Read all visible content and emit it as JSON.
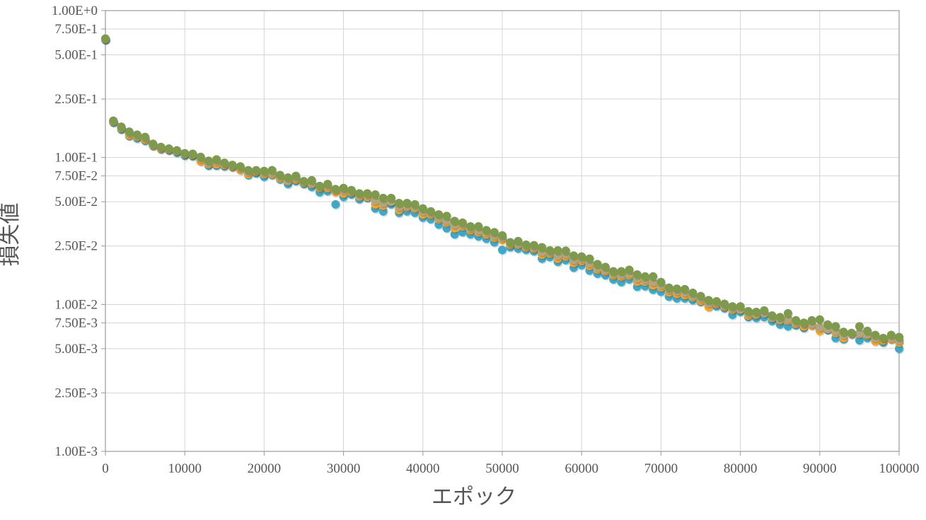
{
  "chart_data": {
    "type": "scatter",
    "title": "",
    "xlabel": "エポック",
    "ylabel": "損失値",
    "xlim": [
      0,
      100000
    ],
    "ylim": [
      0.001,
      1.0
    ],
    "y_scale": "log",
    "grid": true,
    "x_ticks": [
      0,
      10000,
      20000,
      30000,
      40000,
      50000,
      60000,
      70000,
      80000,
      90000,
      100000
    ],
    "x_tick_labels": [
      "0",
      "10000",
      "20000",
      "30000",
      "40000",
      "50000",
      "60000",
      "70000",
      "80000",
      "90000",
      "100000"
    ],
    "y_ticks": [
      0.001,
      0.0025,
      0.005,
      0.0075,
      0.01,
      0.025,
      0.05,
      0.075,
      0.1,
      0.25,
      0.5,
      0.75,
      1.0
    ],
    "y_tick_labels": [
      "1.00E-3",
      "2.50E-3",
      "5.00E-3",
      "7.50E-3",
      "1.00E-2",
      "2.50E-2",
      "5.00E-2",
      "7.50E-2",
      "1.00E-1",
      "2.50E-1",
      "5.00E-1",
      "7.50E-1",
      "1.00E+0"
    ],
    "x": [
      0,
      1000,
      2000,
      3000,
      4000,
      5000,
      6000,
      7000,
      8000,
      9000,
      10000,
      11000,
      12000,
      13000,
      14000,
      15000,
      16000,
      17000,
      18000,
      19000,
      20000,
      21000,
      22000,
      23000,
      24000,
      25000,
      26000,
      27000,
      28000,
      29000,
      30000,
      31000,
      32000,
      33000,
      34000,
      35000,
      36000,
      37000,
      38000,
      39000,
      40000,
      41000,
      42000,
      43000,
      44000,
      45000,
      46000,
      47000,
      48000,
      49000,
      50000,
      51000,
      52000,
      53000,
      54000,
      55000,
      56000,
      57000,
      58000,
      59000,
      60000,
      61000,
      62000,
      63000,
      64000,
      65000,
      66000,
      67000,
      68000,
      69000,
      70000,
      71000,
      72000,
      73000,
      74000,
      75000,
      76000,
      77000,
      78000,
      79000,
      80000,
      81000,
      82000,
      83000,
      84000,
      85000,
      86000,
      87000,
      88000,
      89000,
      90000,
      91000,
      92000,
      93000,
      94000,
      95000,
      96000,
      97000,
      98000,
      99000,
      100000
    ],
    "series": [
      {
        "color": "#41a7c6",
        "values": [
          0.63,
          0.173,
          0.155,
          0.14,
          0.135,
          0.13,
          0.12,
          0.114,
          0.112,
          0.108,
          0.103,
          0.102,
          0.095,
          0.088,
          0.088,
          0.087,
          0.086,
          0.083,
          0.076,
          0.078,
          0.074,
          0.076,
          0.071,
          0.066,
          0.069,
          0.066,
          0.063,
          0.058,
          0.059,
          0.048,
          0.054,
          0.056,
          0.052,
          0.053,
          0.045,
          0.043,
          0.048,
          0.042,
          0.043,
          0.042,
          0.039,
          0.038,
          0.035,
          0.033,
          0.03,
          0.031,
          0.03,
          0.029,
          0.028,
          0.0265,
          0.0235,
          0.0245,
          0.024,
          0.0235,
          0.023,
          0.0205,
          0.021,
          0.0195,
          0.02,
          0.0178,
          0.0185,
          0.017,
          0.0162,
          0.0158,
          0.0148,
          0.0142,
          0.0148,
          0.0132,
          0.0133,
          0.0126,
          0.0122,
          0.0113,
          0.011,
          0.011,
          0.0107,
          0.0104,
          0.0097,
          0.0097,
          0.0094,
          0.0085,
          0.0089,
          0.0082,
          0.0081,
          0.0082,
          0.0077,
          0.0073,
          0.0071,
          0.0072,
          0.0069,
          0.0072,
          0.0068,
          0.0067,
          0.0059,
          0.0058,
          0.0063,
          0.0057,
          0.0059,
          0.0057,
          0.0055,
          0.0058,
          0.005
        ]
      },
      {
        "color": "#f0a431",
        "values": [
          0.64,
          0.175,
          0.158,
          0.142,
          0.138,
          0.132,
          0.121,
          0.115,
          0.113,
          0.11,
          0.105,
          0.104,
          0.094,
          0.09,
          0.09,
          0.089,
          0.087,
          0.082,
          0.077,
          0.08,
          0.077,
          0.077,
          0.072,
          0.069,
          0.071,
          0.067,
          0.066,
          0.062,
          0.062,
          0.058,
          0.057,
          0.058,
          0.054,
          0.054,
          0.048,
          0.047,
          0.05,
          0.044,
          0.046,
          0.045,
          0.041,
          0.041,
          0.038,
          0.036,
          0.033,
          0.034,
          0.032,
          0.031,
          0.03,
          0.0285,
          0.0275,
          0.0255,
          0.0255,
          0.0245,
          0.024,
          0.0218,
          0.0222,
          0.0205,
          0.0212,
          0.0192,
          0.0198,
          0.0183,
          0.0173,
          0.0168,
          0.0158,
          0.0155,
          0.0158,
          0.0143,
          0.0143,
          0.0135,
          0.0131,
          0.0121,
          0.0118,
          0.0116,
          0.0112,
          0.0106,
          0.0096,
          0.0101,
          0.0097,
          0.0092,
          0.0092,
          0.0084,
          0.0085,
          0.0088,
          0.0081,
          0.0078,
          0.0078,
          0.0074,
          0.0071,
          0.0072,
          0.0066,
          0.0068,
          0.0064,
          0.0059,
          0.0063,
          0.0063,
          0.0062,
          0.0056,
          0.0057,
          0.0058,
          0.0055
        ]
      },
      {
        "color": "#b3a57e",
        "values": [
          0.64,
          0.176,
          0.159,
          0.147,
          0.14,
          0.135,
          0.122,
          0.117,
          0.114,
          0.111,
          0.106,
          0.105,
          0.098,
          0.092,
          0.094,
          0.091,
          0.088,
          0.085,
          0.08,
          0.081,
          0.079,
          0.079,
          0.074,
          0.07,
          0.073,
          0.068,
          0.067,
          0.063,
          0.064,
          0.06,
          0.06,
          0.059,
          0.055,
          0.056,
          0.051,
          0.049,
          0.05,
          0.046,
          0.047,
          0.046,
          0.043,
          0.042,
          0.039,
          0.037,
          0.035,
          0.035,
          0.033,
          0.032,
          0.031,
          0.0295,
          0.0285,
          0.026,
          0.026,
          0.025,
          0.0245,
          0.0228,
          0.0228,
          0.0215,
          0.022,
          0.02,
          0.0205,
          0.019,
          0.0178,
          0.0172,
          0.0162,
          0.016,
          0.0162,
          0.015,
          0.0148,
          0.0142,
          0.0136,
          0.0126,
          0.0123,
          0.0121,
          0.0115,
          0.011,
          0.0102,
          0.0103,
          0.0099,
          0.0094,
          0.0093,
          0.0087,
          0.0086,
          0.0087,
          0.0081,
          0.0079,
          0.008,
          0.0076,
          0.0074,
          0.0074,
          0.007,
          0.0068,
          0.0066,
          0.0062,
          0.0063,
          0.0064,
          0.0063,
          0.0059,
          0.0059,
          0.0059,
          0.0057
        ]
      },
      {
        "color": "#7e9b4c",
        "values": [
          0.645,
          0.178,
          0.162,
          0.15,
          0.143,
          0.138,
          0.124,
          0.118,
          0.115,
          0.112,
          0.107,
          0.106,
          0.101,
          0.095,
          0.097,
          0.092,
          0.089,
          0.087,
          0.082,
          0.082,
          0.081,
          0.082,
          0.076,
          0.073,
          0.075,
          0.069,
          0.07,
          0.064,
          0.066,
          0.061,
          0.062,
          0.06,
          0.057,
          0.057,
          0.056,
          0.053,
          0.053,
          0.049,
          0.049,
          0.048,
          0.045,
          0.043,
          0.041,
          0.04,
          0.037,
          0.036,
          0.034,
          0.034,
          0.032,
          0.031,
          0.0295,
          0.0265,
          0.027,
          0.0255,
          0.0253,
          0.0245,
          0.0233,
          0.0233,
          0.0232,
          0.0215,
          0.0212,
          0.0205,
          0.0188,
          0.018,
          0.0168,
          0.0168,
          0.0172,
          0.016,
          0.0155,
          0.0155,
          0.0142,
          0.013,
          0.0128,
          0.0127,
          0.012,
          0.0114,
          0.0107,
          0.0105,
          0.0101,
          0.0097,
          0.0097,
          0.009,
          0.0089,
          0.0091,
          0.0084,
          0.0082,
          0.0087,
          0.0078,
          0.0075,
          0.0078,
          0.0079,
          0.0073,
          0.0071,
          0.0065,
          0.0064,
          0.0071,
          0.0066,
          0.0062,
          0.0059,
          0.0062,
          0.006
        ]
      }
    ]
  }
}
